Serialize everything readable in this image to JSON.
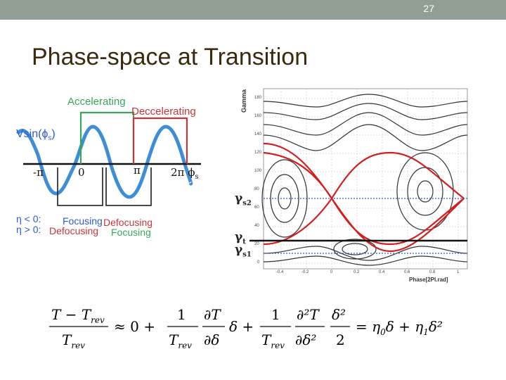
{
  "slide": {
    "number": "27",
    "title": "Phase-space at Transition"
  },
  "diagram": {
    "accelerating": "Accelerating",
    "deccelerating": "Deccelerating",
    "vsin_label": "Vsin(ϕ",
    "vsin_sub": "s",
    "vsin_close": ")",
    "tick_minus_pi": "-π",
    "tick_zero": "0",
    "tick_pi": "π",
    "tick_2pi": "2π",
    "tick_phi": "ϕ",
    "tick_phi_sub": "s",
    "eta_neg": "η < 0:",
    "eta_pos": "η > 0:",
    "focusing_1": "Focusing",
    "defocusing_1": "Defocusing",
    "defocusing_2": "Defocusing",
    "focusing_2": "Focusing",
    "colors": {
      "green": "#3aa55a",
      "red": "#c8353a",
      "blue": "#2f5bd0"
    }
  },
  "phase_plot": {
    "ylabel": "Gamma",
    "xlabel": "Phase[2PI.rad]",
    "yticks": [
      "180",
      "160",
      "140",
      "120",
      "100",
      "80",
      "60",
      "40",
      "20",
      "0"
    ],
    "xticks": [
      "-0.4",
      "-0.2",
      "0",
      "0.2",
      "0.4",
      "0.6",
      "0.8",
      "1"
    ],
    "gamma_s2": "γ",
    "gamma_s2_sub": "s2",
    "gamma_t": "γ",
    "gamma_t_sub": "t",
    "gamma_s1": "γ",
    "gamma_s1_sub": "s1"
  },
  "formula": {
    "lhs_num": "T − T",
    "lhs_num_sub": "rev",
    "lhs_den": "T",
    "lhs_den_sub": "rev",
    "approx": "≈ 0 +",
    "t1_num": "1",
    "t1_den": "T",
    "t1_den_sub": "rev",
    "t1_pnum": "∂T",
    "t1_pden": "∂δ",
    "t1_tail": "δ +",
    "t2_num": "1",
    "t2_den": "T",
    "t2_den_sub": "rev",
    "t2_pnum": "∂²T",
    "t2_pden": "∂δ²",
    "t2_fnum": "δ²",
    "t2_fden": "2",
    "rhs": "= η",
    "rhs_sub0": "0",
    "rhs_mid": "δ + η",
    "rhs_sub1": "1",
    "rhs_end": "δ²"
  }
}
